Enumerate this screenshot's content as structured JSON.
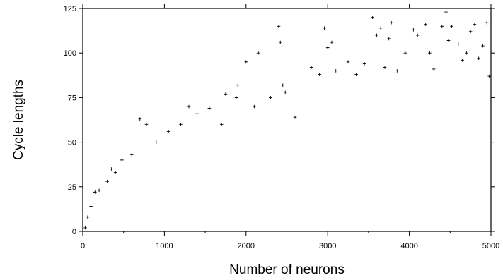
{
  "chart_data": {
    "type": "scatter",
    "title": "",
    "xlabel": "Number of neurons",
    "ylabel": "Cycle lengths",
    "xlim": [
      0,
      5000
    ],
    "ylim": [
      0,
      125
    ],
    "xticks": [
      0,
      1000,
      2000,
      3000,
      4000,
      5000
    ],
    "yticks": [
      0,
      25,
      50,
      75,
      100,
      125
    ],
    "grid": false,
    "marker": "plus",
    "marker_color": "#000000",
    "series": [
      {
        "points": [
          [
            30,
            2
          ],
          [
            60,
            8
          ],
          [
            100,
            14
          ],
          [
            150,
            22
          ],
          [
            200,
            23
          ],
          [
            300,
            28
          ],
          [
            350,
            35
          ],
          [
            400,
            33
          ],
          [
            480,
            40
          ],
          [
            600,
            43
          ],
          [
            700,
            63
          ],
          [
            780,
            60
          ],
          [
            900,
            50
          ],
          [
            1050,
            56
          ],
          [
            1200,
            60
          ],
          [
            1300,
            70
          ],
          [
            1400,
            66
          ],
          [
            1550,
            69
          ],
          [
            1700,
            60
          ],
          [
            1750,
            77
          ],
          [
            1880,
            75
          ],
          [
            1900,
            82
          ],
          [
            2000,
            95
          ],
          [
            2100,
            70
          ],
          [
            2150,
            100
          ],
          [
            2300,
            75
          ],
          [
            2400,
            115
          ],
          [
            2420,
            106
          ],
          [
            2450,
            82
          ],
          [
            2480,
            78
          ],
          [
            2600,
            64
          ],
          [
            2800,
            92
          ],
          [
            2900,
            88
          ],
          [
            2960,
            114
          ],
          [
            3000,
            103
          ],
          [
            3050,
            106
          ],
          [
            3100,
            90
          ],
          [
            3150,
            86
          ],
          [
            3250,
            95
          ],
          [
            3350,
            88
          ],
          [
            3450,
            94
          ],
          [
            3550,
            120
          ],
          [
            3600,
            110
          ],
          [
            3650,
            114
          ],
          [
            3700,
            92
          ],
          [
            3750,
            108
          ],
          [
            3780,
            117
          ],
          [
            3850,
            90
          ],
          [
            3950,
            100
          ],
          [
            4050,
            113
          ],
          [
            4100,
            110
          ],
          [
            4200,
            116
          ],
          [
            4250,
            100
          ],
          [
            4300,
            91
          ],
          [
            4400,
            115
          ],
          [
            4450,
            123
          ],
          [
            4480,
            107
          ],
          [
            4520,
            115
          ],
          [
            4600,
            105
          ],
          [
            4650,
            96
          ],
          [
            4700,
            100
          ],
          [
            4750,
            112
          ],
          [
            4800,
            116
          ],
          [
            4850,
            97
          ],
          [
            4900,
            104
          ],
          [
            4950,
            117
          ],
          [
            4980,
            87
          ]
        ]
      }
    ]
  }
}
